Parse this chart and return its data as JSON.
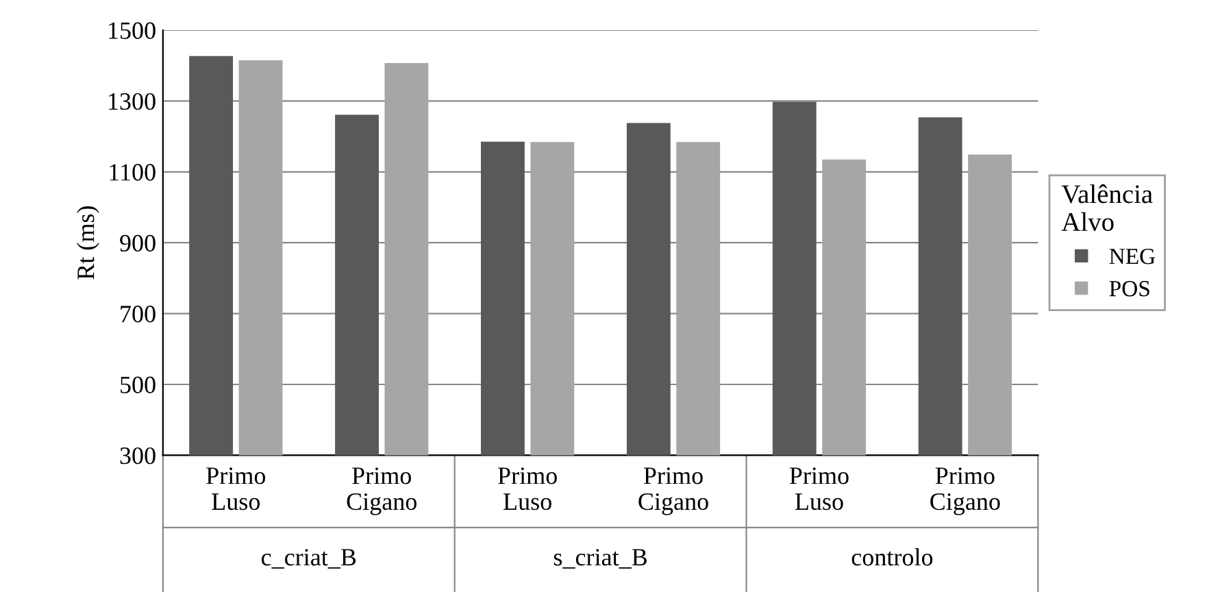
{
  "chart_data": {
    "type": "bar",
    "ylabel": "Rt (ms)",
    "legend_title": "Valência\nAlvo",
    "categories": [
      "Primo\nLuso",
      "Primo\nCigano",
      "Primo\nLuso",
      "Primo\nCigano",
      "Primo\nLuso",
      "Primo\nCigano"
    ],
    "annotations": [
      "c_criat_B",
      "s_criat_B",
      "controlo"
    ],
    "series": [
      {
        "name": "NEG",
        "color": "#595959",
        "values": [
          1427,
          1261,
          1185,
          1238,
          1298,
          1254
        ]
      },
      {
        "name": "POS",
        "color": "#a6a6a6",
        "values": [
          1415,
          1407,
          1184,
          1184,
          1135,
          1149
        ]
      }
    ],
    "ylim": [
      300,
      1500
    ],
    "yticks": [
      300,
      500,
      700,
      900,
      1100,
      1300,
      1500
    ],
    "grid": "y",
    "legend": "right"
  }
}
